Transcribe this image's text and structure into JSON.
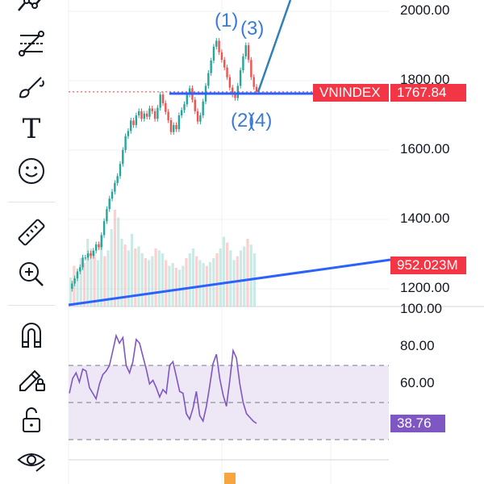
{
  "toolbar": {
    "tools": [
      {
        "name": "trend-line-tool-icon"
      },
      {
        "name": "fib-retracement-tool-icon"
      },
      {
        "name": "brush-tool-icon"
      },
      {
        "name": "text-tool-icon"
      },
      {
        "name": "emoji-tool-icon"
      },
      {
        "name": "measure-tool-icon"
      },
      {
        "name": "zoom-in-tool-icon"
      },
      {
        "name": "magnet-tool-icon"
      },
      {
        "name": "lock-drawing-tool-icon"
      },
      {
        "name": "lock-all-tool-icon"
      },
      {
        "name": "visibility-tool-icon"
      }
    ],
    "text_tool_glyph": "T"
  },
  "price_axis": {
    "labels": [
      "2000.00",
      "1800.00",
      "1600.00",
      "1400.00",
      "1200.00"
    ]
  },
  "rsi_axis": {
    "labels": [
      "100.00",
      "80.00",
      "60.00"
    ]
  },
  "tags": {
    "symbol": "VNINDEX",
    "last_price": "1767.84",
    "volume": "952.023M",
    "rsi_value": "38.76"
  },
  "waves": {
    "w1": "(1)",
    "w2": "(2)",
    "w3": "(3)",
    "w4": "(4)"
  },
  "colors": {
    "up": "#26a69a",
    "down": "#ef5350",
    "trend": "#2962ff",
    "wave": "#2f7fb8",
    "rsi": "#7e57c2",
    "rsi_band": "#ede7f6",
    "tag_red": "#f23645",
    "tag_purple": "#7e57c2"
  },
  "chart_data": {
    "type": "candlestick",
    "symbol": "VNINDEX",
    "price_axis_range": [
      1120,
      2160
    ],
    "price_ticks": [
      1200,
      1400,
      1600,
      1800,
      2000
    ],
    "last_price": 1767.84,
    "support_level": 1767.84,
    "rsi_range": [
      20,
      100
    ],
    "rsi_levels": [
      70,
      50,
      30
    ],
    "rsi_last": 38.76,
    "volume_last": "952.023M",
    "closes": [
      1200,
      1215,
      1230,
      1250,
      1262,
      1290,
      1290,
      1302,
      1295,
      1310,
      1328,
      1320,
      1355,
      1395,
      1430,
      1460,
      1480,
      1505,
      1525,
      1560,
      1600,
      1640,
      1655,
      1685,
      1672,
      1700,
      1712,
      1690,
      1705,
      1696,
      1720,
      1712,
      1690,
      1722,
      1760,
      1735,
      1710,
      1686,
      1652,
      1672,
      1660,
      1700,
      1715,
      1732,
      1760,
      1778,
      1745,
      1712,
      1682,
      1700,
      1740,
      1785,
      1822,
      1858,
      1898,
      1915,
      1882,
      1860,
      1838,
      1810,
      1780,
      1760,
      1750,
      1785,
      1830,
      1870,
      1902,
      1860,
      1810,
      1782,
      1767.84
    ],
    "rsi": [
      55,
      63,
      66,
      61,
      68,
      67,
      58,
      55,
      52,
      60,
      65,
      67,
      70,
      78,
      86,
      82,
      85,
      70,
      66,
      72,
      84,
      82,
      75,
      68,
      60,
      62,
      58,
      53,
      57,
      55,
      70,
      72,
      64,
      56,
      55,
      44,
      41,
      47,
      56,
      43,
      40,
      48,
      59,
      71,
      76,
      63,
      54,
      48,
      62,
      78,
      74,
      60,
      50,
      44,
      42,
      40,
      38.76
    ],
    "volume": [
      30,
      42,
      35,
      50,
      45,
      70,
      60,
      55,
      48,
      66,
      52,
      58,
      80,
      100,
      92,
      70,
      64,
      58,
      75,
      60,
      62,
      55,
      50,
      48,
      52,
      60,
      58,
      55,
      48,
      42,
      45,
      40,
      38,
      42,
      50,
      55,
      60,
      52,
      48,
      45,
      42,
      46,
      50,
      55,
      60,
      72,
      66,
      58,
      48,
      52,
      58,
      62,
      70,
      64,
      55
    ]
  }
}
